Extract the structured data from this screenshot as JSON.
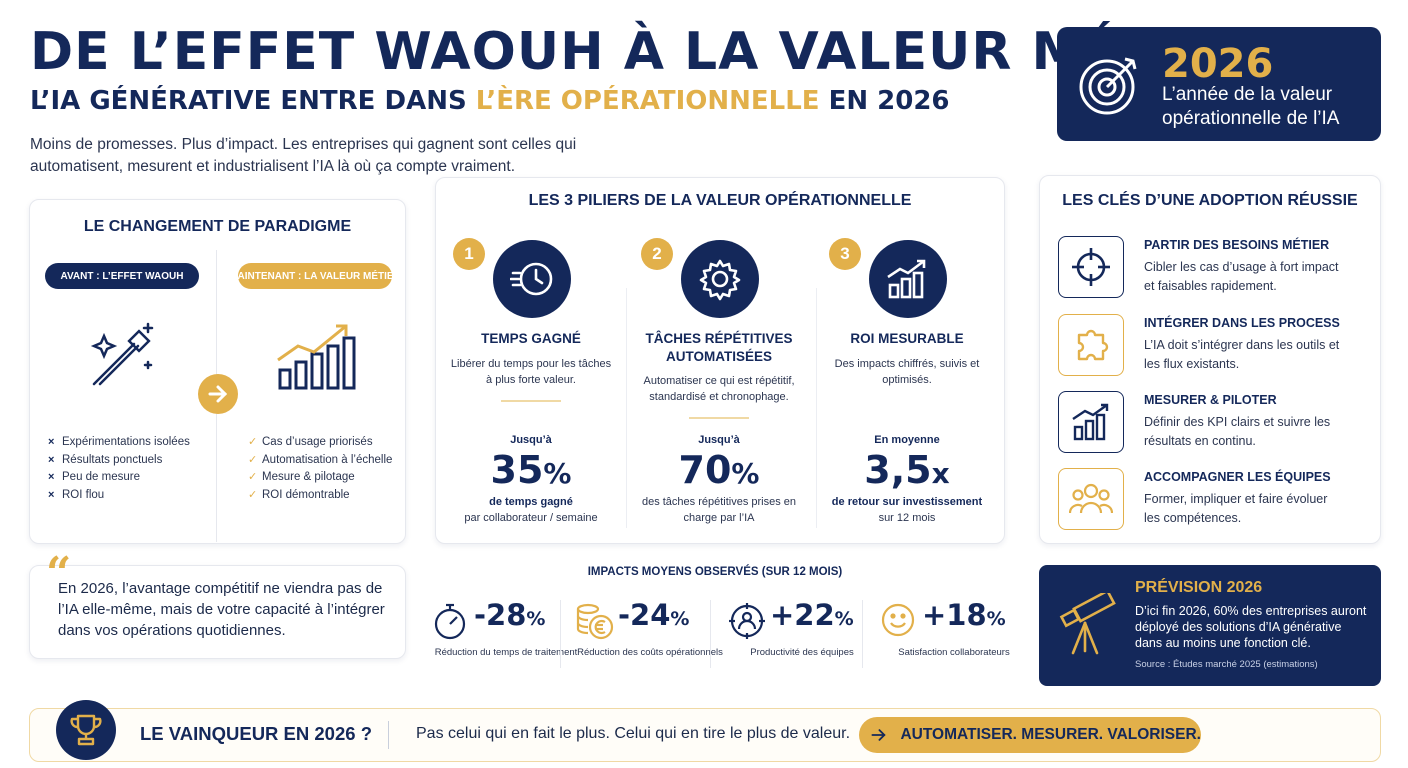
{
  "header": {
    "title": "DE L’EFFET WAOUH À LA VALEUR MÉTIER",
    "subtitle_pre": "L’IA GÉNÉRATIVE ENTRE DANS ",
    "subtitle_highlight": "L’ÈRE OPÉRATIONNELLE",
    "subtitle_post": " EN 2026",
    "intro": "Moins de promesses. Plus d’impact. Les entreprises qui gagnent sont celles qui automatisent, mesurent et industrialisent l’IA là où ça compte vraiment."
  },
  "badge": {
    "year": "2026",
    "text": "L’année de la valeur opérationnelle de l’IA",
    "icon": "target-icon"
  },
  "paradigm": {
    "title": "LE CHANGEMENT DE PARADIGME",
    "before_label": "AVANT : L’EFFET WAOUH",
    "after_label": "MAINTENANT : LA VALEUR MÉTIER",
    "before_items": [
      "Expérimentations isolées",
      "Résultats ponctuels",
      "Peu de mesure",
      "ROI flou"
    ],
    "after_items": [
      "Cas d’usage priorisés",
      "Automatisation à l’échelle",
      "Mesure & pilotage",
      "ROI démontrable"
    ],
    "before_marker": "×",
    "after_marker": "✓"
  },
  "pillars": {
    "title": "LES 3 PILIERS DE LA VALEUR OPÉRATIONNELLE",
    "items": [
      {
        "num": "1",
        "title": "TEMPS GAGNÉ",
        "desc": "Libérer du temps pour les tâches à plus forte valeur.",
        "prefix": "Jusqu’à",
        "value": "35",
        "unit": "%",
        "foot_bold": "de temps gagné",
        "foot": "par collaborateur / semaine",
        "icon": "fast-clock-icon"
      },
      {
        "num": "2",
        "title": "TÂCHES RÉPÉTITIVES AUTOMATISÉES",
        "desc": "Automatiser ce qui est répétitif, standardisé et chronophage.",
        "prefix": "Jusqu’à",
        "value": "70",
        "unit": "%",
        "foot_bold": "",
        "foot": "des tâches répétitives prises en charge par l’IA",
        "icon": "gear-icon"
      },
      {
        "num": "3",
        "title": "ROI MESURABLE",
        "desc": "Des impacts chiffrés, suivis et optimisés.",
        "prefix": "En moyenne",
        "value": "3,5",
        "unit": "x",
        "foot_bold": "de retour sur investissement",
        "foot": "sur 12 mois",
        "icon": "growth-chart-icon"
      }
    ]
  },
  "keys": {
    "title": "LES CLÉS D’UNE ADOPTION RÉUSSIE",
    "items": [
      {
        "title": "PARTIR DES BESOINS MÉTIER",
        "desc": "Cibler les cas d’usage à fort impact et faisables rapidement.",
        "icon": "crosshair-icon"
      },
      {
        "title": "INTÉGRER DANS LES PROCESS",
        "desc": "L’IA doit s’intégrer dans les outils et les flux existants.",
        "icon": "puzzle-icon"
      },
      {
        "title": "MESURER & PILOTER",
        "desc": "Définir des KPI clairs et suivre les résultats en continu.",
        "icon": "bar-chart-icon"
      },
      {
        "title": "ACCOMPAGNER LES ÉQUIPES",
        "desc": "Former, impliquer et faire évoluer les compétences.",
        "icon": "team-icon"
      }
    ]
  },
  "quote": {
    "mark": "“",
    "text": "En 2026, l’avantage compétitif ne viendra pas de l’IA elle-même, mais de votre capacité à l’intégrer dans vos opérations quotidiennes."
  },
  "impacts": {
    "title": "IMPACTS MOYENS OBSERVÉS (SUR 12 MOIS)",
    "items": [
      {
        "value": "-28",
        "unit": "%",
        "label": "Réduction du temps de traitement",
        "icon": "stopwatch-icon"
      },
      {
        "value": "-24",
        "unit": "%",
        "label": "Réduction des coûts opérationnels",
        "icon": "euro-coins-icon"
      },
      {
        "value": "+22",
        "unit": "%",
        "label": "Productivité des équipes",
        "icon": "user-target-icon"
      },
      {
        "value": "+18",
        "unit": "%",
        "label": "Satisfaction collaborateurs",
        "icon": "smiley-icon"
      }
    ]
  },
  "forecast": {
    "title": "PRÉVISION 2026",
    "text": "D’ici fin 2026, 60% des entreprises auront déployé des solutions d’IA générative dans au moins une fonction clé.",
    "source": "Source : Études marché 2025 (estimations)",
    "icon": "telescope-icon"
  },
  "banner": {
    "question": "LE VAINQUEUR EN 2026 ?",
    "text": "Pas celui qui en fait le plus. Celui qui en tire le plus de valeur.",
    "cta": "AUTOMATISER. MESURER. VALORISER.",
    "icon": "trophy-icon"
  },
  "colors": {
    "navy": "#14285a",
    "gold": "#e2b04a"
  }
}
